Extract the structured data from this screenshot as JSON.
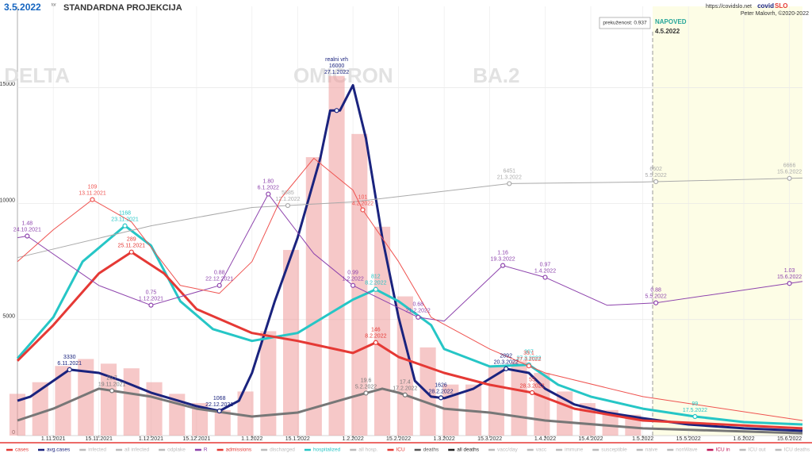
{
  "header": {
    "date": "3.5.2022",
    "weekday": "tor",
    "title": "STANDARDNA PROJEKCIJA",
    "url": "https://covidslo.net",
    "brand": [
      "covid",
      "SLO"
    ],
    "author": "Peter Malovrh, ©2020-2022",
    "immunity": "prekuženost: 0.937",
    "forecast_label": "NAPOVED"
  },
  "chart_data": {
    "type": "line",
    "title": "STANDARDNA PROJEKCIJA",
    "xlim": [
      "21.10.2021",
      "19.6.2022"
    ],
    "ylim": [
      0,
      18500
    ],
    "yticks": [
      0,
      5000,
      10000,
      15000
    ],
    "grid": true,
    "xticks": [
      "1.11.2021",
      "15.11.2021",
      "1.12.2021",
      "15.12.2021",
      "1.1.2022",
      "15.1.2022",
      "1.2.2022",
      "15.2.2022",
      "1.3.2022",
      "15.3.2022",
      "1.4.2022",
      "15.4.2022",
      "1.5.2022",
      "15.5.2022",
      "1.6.2022",
      "15.6.2022"
    ],
    "forecast_start": "4.5.2022",
    "regions": [
      {
        "label": "DELTA",
        "date": "27.10.2021"
      },
      {
        "label": "OMICRON",
        "date": "29.1.2022"
      },
      {
        "label": "BA.2",
        "date": "17.3.2022"
      }
    ],
    "bars": {
      "color": "#ef9a9a",
      "x": [
        "21.10.2021",
        "28.10.2021",
        "4.11.2021",
        "11.11.2021",
        "18.11.2021",
        "25.11.2021",
        "2.12.2021",
        "9.12.2021",
        "16.12.2021",
        "23.12.2021",
        "30.12.2021",
        "6.1.2022",
        "13.1.2022",
        "20.1.2022",
        "27.1.2022",
        "3.2.2022",
        "10.2.2022",
        "17.2.2022",
        "24.2.2022",
        "3.3.2022",
        "10.3.2022",
        "17.3.2022",
        "24.3.2022",
        "31.3.2022",
        "7.4.2022",
        "14.4.2022",
        "21.4.2022",
        "28.4.2022"
      ],
      "values": [
        1800,
        2300,
        3000,
        3300,
        3100,
        2900,
        2300,
        1800,
        1400,
        1100,
        1900,
        4500,
        8000,
        12000,
        15500,
        13000,
        9000,
        6000,
        3800,
        2200,
        2200,
        3000,
        3200,
        2700,
        1900,
        1400,
        1100,
        900
      ]
    },
    "series": [
      {
        "color": "#1a237e",
        "width": 3,
        "x": [
          "21.10.2021",
          "25.10.2021",
          "1.11.2021",
          "6.11.2021",
          "15.11.2021",
          "22.11.2021",
          "1.12.2021",
          "15.12.2021",
          "22.12.2021",
          "28.12.2021",
          "1.1.2022",
          "8.1.2022",
          "15.1.2022",
          "22.1.2022",
          "25.1.2022",
          "28.1.2022",
          "1.2.2022",
          "5.2.2022",
          "10.2.2022",
          "15.2.2022",
          "20.2.2022",
          "25.2.2022",
          "1.3.2022",
          "10.3.2022",
          "20.3.2022",
          "27.3.2022",
          "1.4.2022",
          "10.4.2022",
          "20.4.2022",
          "1.5.2022",
          "15.5.2022",
          "1.6.2022",
          "19.6.2022"
        ],
        "values": [
          1500,
          1680,
          2360,
          2840,
          2700,
          2360,
          1850,
          1270,
          1060,
          1500,
          2700,
          5790,
          8530,
          11970,
          14010,
          14010,
          15100,
          12810,
          8530,
          5100,
          2360,
          1680,
          1610,
          2020,
          2880,
          2700,
          2020,
          1340,
          990,
          750,
          480,
          310,
          205
        ],
        "annotations": [
          {
            "label": "3330",
            "date": "6.11.2021"
          },
          {
            "label": "1068",
            "date": "22.12.2021"
          },
          {
            "note": "realni vrh",
            "label": "16000",
            "date": "27.1.2022"
          },
          {
            "label": "1626",
            "date": "28.2.2022"
          },
          {
            "label": "2892",
            "date": "20.3.2022"
          }
        ]
      },
      {
        "color": "#26c6c6",
        "width": 3,
        "x": [
          "21.10.2021",
          "1.11.2021",
          "10.11.2021",
          "23.11.2021",
          "1.12.2021",
          "10.12.2021",
          "20.12.2021",
          "1.1.2022",
          "15.1.2022",
          "25.1.2022",
          "1.2.2022",
          "8.2.2022",
          "15.2.2022",
          "25.2.2022",
          "1.3.2022",
          "15.3.2022",
          "27.3.2022",
          "5.4.2022",
          "15.4.2022",
          "1.5.2022",
          "17.5.2022",
          "1.6.2022",
          "19.6.2022"
        ],
        "values": [
          3320,
          5100,
          7500,
          9040,
          8190,
          5790,
          4590,
          4080,
          4420,
          5270,
          5860,
          6300,
          5790,
          4760,
          3730,
          2980,
          3050,
          2190,
          1680,
          1160,
          820,
          580,
          480
        ],
        "annotations": [
          {
            "label": "1168",
            "date": "23.11.2021"
          },
          {
            "label": "812",
            "date": "8.2.2022"
          },
          {
            "label": "307",
            "date": "27.3.2022"
          },
          {
            "label": "99",
            "date": "17.5.2022"
          }
        ]
      },
      {
        "color": "#e53935",
        "width": 3,
        "x": [
          "21.10.2021",
          "1.11.2021",
          "15.11.2021",
          "25.11.2021",
          "5.12.2021",
          "15.12.2021",
          "1.1.2022",
          "15.1.2022",
          "1.2.2022",
          "8.2.2022",
          "15.2.2022",
          "1.3.2022",
          "15.3.2022",
          "28.3.2022",
          "10.4.2022",
          "1.5.2022",
          "19.6.2022"
        ],
        "values": [
          3220,
          4760,
          6990,
          7910,
          6990,
          5450,
          4420,
          4080,
          3560,
          4010,
          3390,
          2700,
          2190,
          1850,
          1160,
          650,
          310
        ],
        "annotations": [
          {
            "label": "289",
            "date": "25.11.2021"
          },
          {
            "label": "146",
            "date": "8.2.2022"
          },
          {
            "label": "55",
            "date": "28.3.2022"
          }
        ]
      },
      {
        "color": "#777777",
        "width": 3,
        "x": [
          "21.10.2021",
          "1.11.2021",
          "15.11.2021",
          "1.12.2021",
          "15.12.2021",
          "1.1.2022",
          "15.1.2022",
          "1.2.2022",
          "10.2.2022",
          "15.2.2022",
          "1.3.2022",
          "15.3.2022",
          "1.4.2022",
          "1.5.2022",
          "19.6.2022"
        ],
        "values": [
          650,
          1160,
          2020,
          1680,
          1160,
          820,
          990,
          1680,
          2020,
          1850,
          1160,
          990,
          650,
          310,
          100
        ],
        "annotations": [
          {
            "label": "20.7",
            "date": "19.11.2021"
          },
          {
            "label": "19.6",
            "date": "5.2.2022"
          },
          {
            "label": "17.4",
            "date": "17.2.2022"
          }
        ]
      },
      {
        "color": "#aaaaaa",
        "width": 1,
        "x": [
          "21.10.2021",
          "1.12.2021",
          "1.1.2022",
          "1.2.2022",
          "21.3.2022",
          "1.5.2022",
          "19.6.2022"
        ],
        "values": [
          7670,
          9040,
          9830,
          10070,
          10860,
          10930,
          11100
        ],
        "annotations": [
          {
            "label": "5685",
            "date": "12.1.2022"
          },
          {
            "label": "6451",
            "date": "21.3.2022"
          },
          {
            "label": "6602",
            "date": "5.5.2022"
          },
          {
            "label": "6666",
            "date": "15.6.2022"
          }
        ]
      },
      {
        "color": "#8e44ad",
        "width": 1,
        "x": [
          "21.10.2021",
          "24.10.2021",
          "15.11.2021",
          "1.12.2021",
          "22.12.2021",
          "6.1.2022",
          "20.1.2022",
          "1.2.2022",
          "21.2.2022",
          "1.3.2022",
          "19.3.2022",
          "1.4.2022",
          "20.4.2022",
          "5.5.2022",
          "19.6.2022"
        ],
        "values": [
          8530,
          8600,
          6470,
          5620,
          6470,
          10410,
          7840,
          6470,
          5100,
          4930,
          7330,
          6820,
          5620,
          5720,
          6640
        ],
        "annotations": [
          {
            "label": "1.48",
            "date": "24.10.2021"
          },
          {
            "label": "0.75",
            "date": "1.12.2021"
          },
          {
            "label": "0.88",
            "date": "22.12.2021"
          },
          {
            "label": "1.80",
            "date": "6.1.2022"
          },
          {
            "label": "0.99",
            "date": "1.2.2022"
          },
          {
            "label": "0.68",
            "date": "21.2.2022"
          },
          {
            "label": "1.16",
            "date": "19.3.2022"
          },
          {
            "label": "0.97",
            "date": "1.4.2022"
          },
          {
            "label": "0.88",
            "date": "5.5.2022"
          },
          {
            "label": "1.03",
            "date": "15.6.2022"
          }
        ]
      },
      {
        "color": "#ef5350",
        "width": 1,
        "x": [
          "21.10.2021",
          "1.11.2021",
          "13.11.2021",
          "25.11.2021",
          "10.12.2021",
          "22.12.2021",
          "1.1.2022",
          "10.1.2022",
          "20.1.2022",
          "1.2.2022",
          "4.2.2022",
          "15.2.2022",
          "25.2.2022",
          "15.3.2022",
          "1.4.2022",
          "1.5.2022",
          "19.6.2022"
        ],
        "values": [
          7500,
          8870,
          10170,
          9210,
          6470,
          6130,
          7500,
          10240,
          11950,
          10580,
          9730,
          7500,
          5100,
          3730,
          2700,
          1680,
          650
        ],
        "annotations": [
          {
            "label": "109",
            "date": "13.11.2021"
          },
          {
            "label": "101",
            "date": "4.2.2022"
          },
          {
            "label": "33.1",
            "date": "27.3.2022"
          }
        ]
      }
    ],
    "legend": [
      {
        "name": "cases",
        "color": "#e53935"
      },
      {
        "name": "avg.cases",
        "color": "#1a237e"
      },
      {
        "name": "infected",
        "color": "#bbbbbb"
      },
      {
        "name": "all infected",
        "color": "#bbbbbb"
      },
      {
        "name": "odplake",
        "color": "#bbbbbb"
      },
      {
        "name": "R",
        "color": "#8e44ad"
      },
      {
        "name": "admissions",
        "color": "#e53935"
      },
      {
        "name": "discharged",
        "color": "#bbbbbb"
      },
      {
        "name": "hospitalized",
        "color": "#26c6c6"
      },
      {
        "name": "all hosp.",
        "color": "#bbbbbb"
      },
      {
        "name": "ICU",
        "color": "#e53935"
      },
      {
        "name": "deaths",
        "color": "#555555"
      },
      {
        "name": "all deaths",
        "color": "#222222"
      },
      {
        "name": "vacc/day",
        "color": "#bbbbbb"
      },
      {
        "name": "vacc",
        "color": "#bbbbbb"
      },
      {
        "name": "immune",
        "color": "#bbbbbb"
      },
      {
        "name": "susceptible",
        "color": "#bbbbbb"
      },
      {
        "name": "naive",
        "color": "#bbbbbb"
      },
      {
        "name": "nonWave",
        "color": "#bbbbbb"
      },
      {
        "name": "ICU in",
        "color": "#c2185b"
      },
      {
        "name": "ICU out",
        "color": "#bbbbbb"
      },
      {
        "name": "ICU deaths",
        "color": "#bbbbbb"
      },
      {
        "name": "all ICU",
        "color": "#bbbbbb"
      }
    ]
  }
}
